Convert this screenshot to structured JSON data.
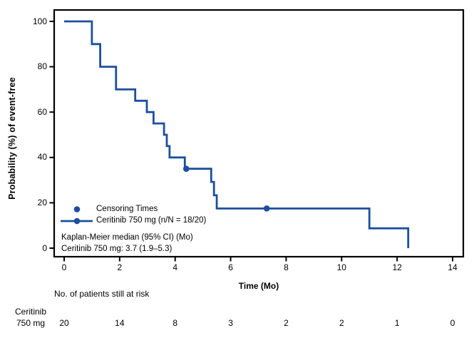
{
  "chart_data": {
    "type": "line",
    "subtype": "kaplan-meier-step",
    "title": "",
    "xlabel": "Time (Mo)",
    "ylabel": "Probability (%) of event-free",
    "xlim": [
      0,
      14
    ],
    "ylim": [
      0,
      100
    ],
    "xticks": [
      0,
      2,
      4,
      6,
      8,
      10,
      12,
      14
    ],
    "yticks": [
      0,
      20,
      40,
      60,
      80,
      100
    ],
    "grid": false,
    "legend_position": "inside-bottom-left",
    "series": [
      {
        "name": "Ceritinib 750 mg (n/N = 18/20)",
        "color": "#1d4f9e",
        "step_points": [
          [
            0,
            100
          ],
          [
            1.0,
            100
          ],
          [
            1.0,
            90
          ],
          [
            1.3,
            90
          ],
          [
            1.3,
            80
          ],
          [
            1.87,
            80
          ],
          [
            1.87,
            70
          ],
          [
            2.56,
            70
          ],
          [
            2.56,
            65
          ],
          [
            2.98,
            65
          ],
          [
            2.98,
            60
          ],
          [
            3.22,
            60
          ],
          [
            3.22,
            55
          ],
          [
            3.6,
            55
          ],
          [
            3.6,
            50
          ],
          [
            3.7,
            50
          ],
          [
            3.7,
            45
          ],
          [
            3.8,
            45
          ],
          [
            3.8,
            40
          ],
          [
            4.35,
            40
          ],
          [
            4.35,
            35
          ],
          [
            5.3,
            35
          ],
          [
            5.3,
            29.2
          ],
          [
            5.4,
            29.2
          ],
          [
            5.4,
            23.3
          ],
          [
            5.5,
            23.3
          ],
          [
            5.5,
            17.5
          ],
          [
            11.0,
            17.5
          ],
          [
            11.0,
            8.75
          ],
          [
            12.4,
            8.75
          ],
          [
            12.4,
            0
          ]
        ],
        "censor_points": [
          [
            4.4,
            35
          ],
          [
            7.3,
            17.5
          ]
        ]
      }
    ],
    "legend": [
      {
        "marker": "dot",
        "label": "Censoring Times"
      },
      {
        "marker": "line-dot",
        "label": "Ceritinib 750 mg (n/N = 18/20)"
      }
    ],
    "annotation_lines": [
      "Kaplan-Meier median (95% CI) (Mo)",
      "Ceritinib 750 mg: 3.7 (1.9–5.3)"
    ],
    "risk_table": {
      "title": "No. of patients still at risk",
      "row_label_lines": [
        "Ceritinib",
        "750 mg"
      ],
      "times": [
        0,
        2,
        4,
        6,
        8,
        10,
        12,
        14
      ],
      "counts": [
        20,
        14,
        8,
        3,
        2,
        2,
        1,
        0
      ]
    }
  },
  "colors": {
    "curve": "#1d4f9e",
    "axis": "#000000",
    "background": "#ffffff"
  }
}
